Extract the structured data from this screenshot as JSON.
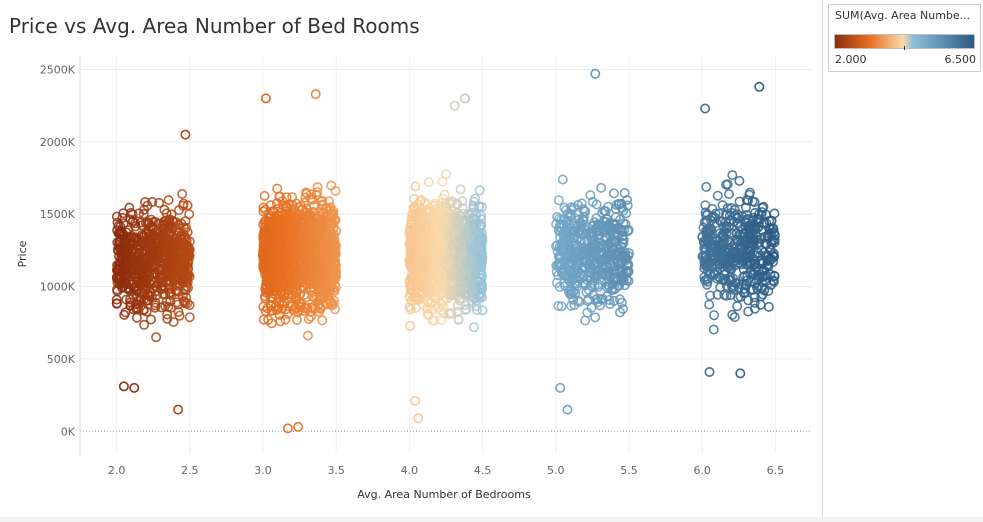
{
  "colors": {
    "min": "#8c2c0d",
    "low": "#e8701f",
    "mid": "#fbd9a9",
    "high": "#8cc0dc",
    "max": "#2a5a84"
  },
  "legend": {
    "title": "SUM(Avg. Area Numbe...",
    "min_label": "2.000",
    "max_label": "6.500"
  },
  "chart_data": {
    "type": "scatter",
    "title": "Price vs Avg. Area Number of Bed Rooms",
    "xlabel": "Avg. Area Number of Bedrooms",
    "ylabel": "Price",
    "xlim": [
      1.75,
      6.75
    ],
    "ylim": [
      -150000,
      2600000
    ],
    "x_ticks": [
      {
        "value": 2.0,
        "label": "2.0"
      },
      {
        "value": 2.5,
        "label": "2.5"
      },
      {
        "value": 3.0,
        "label": "3.0"
      },
      {
        "value": 3.5,
        "label": "3.5"
      },
      {
        "value": 4.0,
        "label": "4.0"
      },
      {
        "value": 4.5,
        "label": "4.5"
      },
      {
        "value": 5.0,
        "label": "5.0"
      },
      {
        "value": 5.5,
        "label": "5.5"
      },
      {
        "value": 6.0,
        "label": "6.0"
      },
      {
        "value": 6.5,
        "label": "6.5"
      }
    ],
    "y_ticks": [
      {
        "value": 0,
        "label": "0K"
      },
      {
        "value": 500000,
        "label": "500K"
      },
      {
        "value": 1000000,
        "label": "1000K"
      },
      {
        "value": 1500000,
        "label": "1500K"
      },
      {
        "value": 2000000,
        "label": "2000K"
      },
      {
        "value": 2500000,
        "label": "2500K"
      }
    ],
    "color_range": [
      2.0,
      6.5
    ],
    "clusters": [
      {
        "x_range": [
          2.0,
          2.5
        ],
        "count": 700,
        "price_center": 1180000,
        "price_spread": 330000,
        "extremes": [
          {
            "x": 2.47,
            "y": 2050000
          },
          {
            "x": 2.42,
            "y": 150000
          },
          {
            "x": 2.05,
            "y": 310000
          },
          {
            "x": 2.12,
            "y": 300000
          }
        ]
      },
      {
        "x_range": [
          3.0,
          3.5
        ],
        "count": 1300,
        "price_center": 1230000,
        "price_spread": 340000,
        "extremes": [
          {
            "x": 3.02,
            "y": 2300000
          },
          {
            "x": 3.36,
            "y": 2330000
          },
          {
            "x": 3.17,
            "y": 20000
          },
          {
            "x": 3.24,
            "y": 30000
          }
        ]
      },
      {
        "x_range": [
          4.0,
          4.5
        ],
        "count": 1300,
        "price_center": 1230000,
        "price_spread": 330000,
        "extremes": [
          {
            "x": 4.38,
            "y": 2300000
          },
          {
            "x": 4.31,
            "y": 2250000
          },
          {
            "x": 4.04,
            "y": 210000
          },
          {
            "x": 4.06,
            "y": 90000
          }
        ]
      },
      {
        "x_range": [
          5.0,
          5.5
        ],
        "count": 500,
        "price_center": 1240000,
        "price_spread": 330000,
        "extremes": [
          {
            "x": 5.27,
            "y": 2470000
          },
          {
            "x": 5.03,
            "y": 300000
          },
          {
            "x": 5.08,
            "y": 150000
          }
        ]
      },
      {
        "x_range": [
          6.0,
          6.5
        ],
        "count": 450,
        "price_center": 1250000,
        "price_spread": 330000,
        "extremes": [
          {
            "x": 6.39,
            "y": 2380000
          },
          {
            "x": 6.02,
            "y": 2230000
          },
          {
            "x": 6.26,
            "y": 400000
          },
          {
            "x": 6.05,
            "y": 410000
          }
        ]
      }
    ]
  }
}
